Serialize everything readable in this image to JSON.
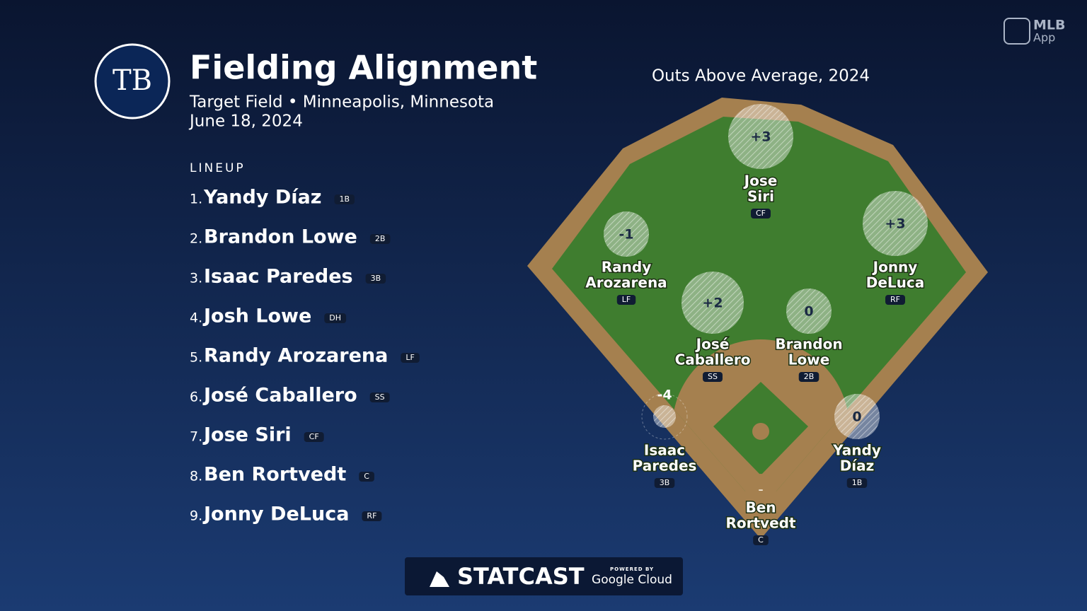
{
  "logo": {
    "team": "TB",
    "app_name": "MLB",
    "app_sub": "App"
  },
  "header": {
    "title": "Fielding Alignment",
    "venue": "Target Field • Minneapolis, Minnesota",
    "date": "June 18, 2024"
  },
  "lineup": {
    "heading": "LINEUP",
    "players": [
      {
        "order": "1.",
        "name": "Yandy Díaz",
        "position": "1B"
      },
      {
        "order": "2.",
        "name": "Brandon Lowe",
        "position": "2B"
      },
      {
        "order": "3.",
        "name": "Isaac Paredes",
        "position": "3B"
      },
      {
        "order": "4.",
        "name": "Josh Lowe",
        "position": "DH"
      },
      {
        "order": "5.",
        "name": "Randy Arozarena",
        "position": "LF"
      },
      {
        "order": "6.",
        "name": "José Caballero",
        "position": "SS"
      },
      {
        "order": "7.",
        "name": "Jose Siri",
        "position": "CF"
      },
      {
        "order": "8.",
        "name": "Ben Rortvedt",
        "position": "C"
      },
      {
        "order": "9.",
        "name": "Jonny DeLuca",
        "position": "RF"
      }
    ]
  },
  "field": {
    "title": "Outs Above Average, 2024",
    "players": [
      {
        "oaa": "+3",
        "name_lines": [
          "Jose",
          "Siri"
        ],
        "position": "CF"
      },
      {
        "oaa": "-1",
        "name_lines": [
          "Randy",
          "Arozarena"
        ],
        "position": "LF"
      },
      {
        "oaa": "+3",
        "name_lines": [
          "Jonny",
          "DeLuca"
        ],
        "position": "RF"
      },
      {
        "oaa": "+2",
        "name_lines": [
          "José",
          "Caballero"
        ],
        "position": "SS"
      },
      {
        "oaa": "0",
        "name_lines": [
          "Brandon",
          "Lowe"
        ],
        "position": "2B"
      },
      {
        "oaa": "-4",
        "name_lines": [
          "Isaac",
          "Paredes"
        ],
        "position": "3B"
      },
      {
        "oaa": "0",
        "name_lines": [
          "Yandy",
          "Díaz"
        ],
        "position": "1B"
      },
      {
        "oaa": "–",
        "name_lines": [
          "Ben",
          "Rortvedt"
        ],
        "position": "C"
      }
    ]
  },
  "footer": {
    "brand": "STATCAST",
    "powered": "POWERED BY",
    "partner": "Google Cloud"
  }
}
